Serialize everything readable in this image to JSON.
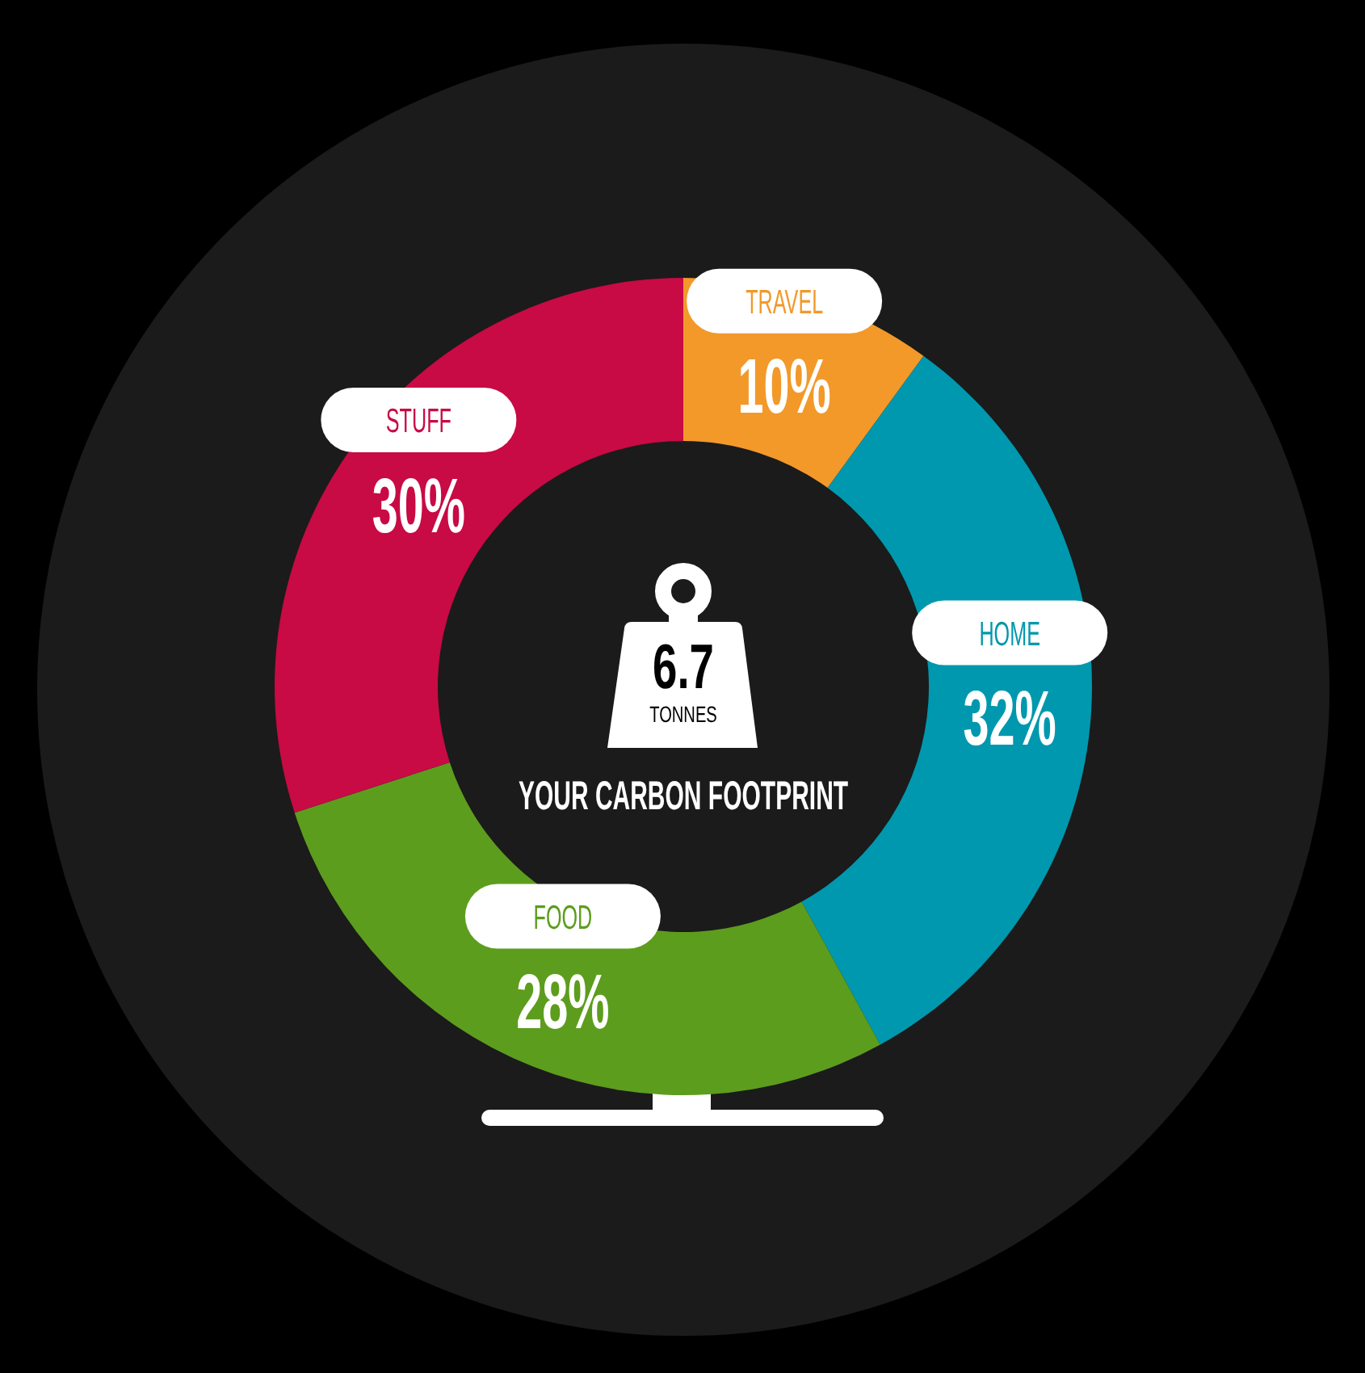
{
  "chart_data": {
    "type": "donut",
    "title": "YOUR CARBON FOOTPRINT",
    "categories": [
      "TRAVEL",
      "HOME",
      "FOOD",
      "STUFF"
    ],
    "values": [
      10,
      32,
      28,
      30
    ],
    "colors": [
      "#f2992a",
      "#0098ae",
      "#5d9d1d",
      "#c80a45"
    ],
    "value_labels": [
      "10%",
      "32%",
      "28%",
      "30%"
    ],
    "annotations": [
      "6.7",
      "TONNES"
    ]
  }
}
